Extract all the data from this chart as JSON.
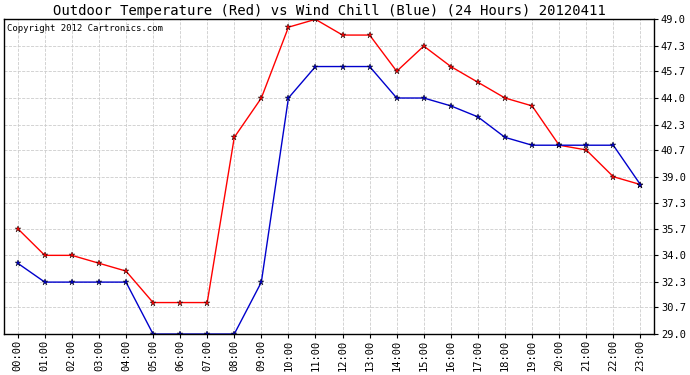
{
  "title": "Outdoor Temperature (Red) vs Wind Chill (Blue) (24 Hours) 20120411",
  "copyright": "Copyright 2012 Cartronics.com",
  "x_labels": [
    "00:00",
    "01:00",
    "02:00",
    "03:00",
    "04:00",
    "05:00",
    "06:00",
    "07:00",
    "08:00",
    "09:00",
    "10:00",
    "11:00",
    "12:00",
    "13:00",
    "14:00",
    "15:00",
    "16:00",
    "17:00",
    "18:00",
    "19:00",
    "20:00",
    "21:00",
    "22:00",
    "23:00"
  ],
  "temp_red": [
    35.7,
    34.0,
    34.0,
    33.5,
    33.0,
    31.0,
    31.0,
    31.0,
    41.5,
    44.0,
    48.5,
    49.0,
    48.0,
    48.0,
    45.7,
    47.3,
    46.0,
    45.0,
    44.0,
    43.5,
    41.0,
    40.7,
    39.0,
    38.5
  ],
  "wind_chill_blue": [
    33.5,
    32.3,
    32.3,
    32.3,
    32.3,
    29.0,
    29.0,
    29.0,
    29.0,
    32.3,
    44.0,
    46.0,
    46.0,
    46.0,
    44.0,
    44.0,
    43.5,
    42.8,
    41.5,
    41.0,
    41.0,
    41.0,
    41.0,
    38.5
  ],
  "ylim_min": 29.0,
  "ylim_max": 49.0,
  "yticks": [
    29.0,
    30.7,
    32.3,
    34.0,
    35.7,
    37.3,
    39.0,
    40.7,
    42.3,
    44.0,
    45.7,
    47.3,
    49.0
  ],
  "red_color": "#ff0000",
  "blue_color": "#0000cc",
  "bg_color": "#ffffff",
  "grid_color": "#cccccc",
  "title_fontsize": 10,
  "tick_fontsize": 7.5
}
